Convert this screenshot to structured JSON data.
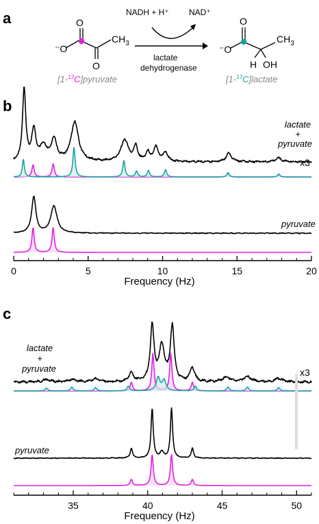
{
  "colors": {
    "black": "#000000",
    "pyruvate": "#e020e0",
    "lactate": "#1aa3a3",
    "pyruvate_fill": "#f6d4f6",
    "lactate_fill": "#cdeaea",
    "artifact": "#c8c8c8"
  },
  "scheme": {
    "panel": "a",
    "reagents": "NADH + H⁺",
    "product_cofactor": "NAD⁺",
    "enzyme_line1": "lactate",
    "enzyme_line2": "dehydrogenase",
    "pyruvate_name": "[1-13C]pyruvate",
    "lactate_name": "[1-13C]lactate",
    "pyruvate_atoms": {
      "o_top": "O",
      "o_minus": "⁻O",
      "o_bottom": "O",
      "ch3": "CH",
      "ch3_sub": "3"
    },
    "lactate_atoms": {
      "o_top": "O",
      "o_minus": "⁻O",
      "h": "H",
      "oh": "OH",
      "ch3": "CH",
      "ch3_sub": "3"
    }
  },
  "chart_data": [
    {
      "panel": "b",
      "type": "line",
      "xlabel": "Frequency (Hz)",
      "xlim": [
        0,
        20
      ],
      "xticks": [
        0,
        5,
        10,
        15,
        20
      ],
      "labels": {
        "mixture_line1": "lactate",
        "mixture_line2": "+",
        "mixture_line3": "pyruvate",
        "scale": "x3",
        "pure": "pyruvate"
      },
      "series": [
        {
          "name": "lactate + pyruvate",
          "role": "experimental",
          "color": "#000000",
          "baseline": 0.0,
          "peaks": [
            [
              0.7,
              1.0,
              0.13
            ],
            [
              1.35,
              0.42,
              0.18
            ],
            [
              2.0,
              0.2,
              0.25
            ],
            [
              2.7,
              0.3,
              0.22
            ],
            [
              4.1,
              0.55,
              0.3
            ],
            [
              7.45,
              0.3,
              0.3
            ],
            [
              8.2,
              0.2,
              0.15
            ],
            [
              9.0,
              0.12,
              0.15
            ],
            [
              9.55,
              0.2,
              0.2
            ],
            [
              10.2,
              0.12,
              0.18
            ],
            [
              14.45,
              0.12,
              0.22
            ],
            [
              17.8,
              0.05,
              0.25
            ]
          ]
        },
        {
          "name": "pyruvate fit (mixture)",
          "role": "fit",
          "color": "#e020e0",
          "fill": true,
          "peaks": [
            [
              1.3,
              0.55,
              0.09
            ],
            [
              2.65,
              0.6,
              0.09
            ],
            [
              14.4,
              0.15,
              0.09
            ],
            [
              17.8,
              0.1,
              0.09
            ]
          ]
        },
        {
          "name": "lactate fit (mixture)",
          "role": "fit",
          "color": "#1aa3a3",
          "fill": true,
          "peaks": [
            [
              0.65,
              0.6,
              0.08
            ],
            [
              4.05,
              1.0,
              0.09
            ],
            [
              7.4,
              0.55,
              0.09
            ],
            [
              8.25,
              0.2,
              0.09
            ],
            [
              9.05,
              0.22,
              0.09
            ],
            [
              10.2,
              0.25,
              0.09
            ],
            [
              14.4,
              0.15,
              0.09
            ],
            [
              17.8,
              0.1,
              0.09
            ]
          ]
        },
        {
          "name": "pyruvate",
          "role": "experimental",
          "color": "#000000",
          "baseline": 0.0,
          "peaks": [
            [
              1.35,
              1.0,
              0.17
            ],
            [
              2.7,
              0.75,
              0.25
            ]
          ]
        },
        {
          "name": "pyruvate fit",
          "role": "fit",
          "color": "#e020e0",
          "fill": true,
          "peaks": [
            [
              1.3,
              1.0,
              0.09
            ],
            [
              2.65,
              1.0,
              0.09
            ]
          ]
        }
      ]
    },
    {
      "panel": "c",
      "type": "line",
      "xlabel": "Frequency (Hz)",
      "xlim": [
        31,
        51
      ],
      "xticks": [
        35,
        40,
        45,
        50
      ],
      "labels": {
        "mixture_line1": "lactate",
        "mixture_line2": "+",
        "mixture_line3": "pyruvate",
        "scale": "x3",
        "pure": "pyruvate"
      },
      "series": [
        {
          "name": "lactate + pyruvate",
          "role": "experimental",
          "color": "#000000",
          "baseline": 0.0,
          "peaks": [
            [
              33.2,
              0.04,
              0.3
            ],
            [
              34.9,
              0.04,
              0.3
            ],
            [
              36.5,
              0.05,
              0.3
            ],
            [
              38.9,
              0.15,
              0.18
            ],
            [
              40.3,
              0.95,
              0.15
            ],
            [
              40.95,
              0.6,
              0.22
            ],
            [
              41.65,
              0.95,
              0.15
            ],
            [
              43.0,
              0.24,
              0.18
            ],
            [
              45.3,
              0.08,
              0.3
            ],
            [
              46.7,
              0.09,
              0.3
            ],
            [
              48.8,
              0.06,
              0.3
            ]
          ]
        },
        {
          "name": "pyruvate fit (mixture)",
          "role": "fit",
          "color": "#e020e0",
          "fill": true,
          "peaks": [
            [
              38.9,
              0.18,
              0.09
            ],
            [
              40.35,
              0.78,
              0.09
            ],
            [
              41.55,
              0.78,
              0.09
            ],
            [
              43.0,
              0.18,
              0.09
            ]
          ]
        },
        {
          "name": "lactate fit (mixture)",
          "role": "fit",
          "color": "#1aa3a3",
          "fill": true,
          "peaks": [
            [
              33.2,
              0.06,
              0.1
            ],
            [
              34.9,
              0.08,
              0.1
            ],
            [
              36.5,
              0.07,
              0.1
            ],
            [
              38.7,
              0.1,
              0.1
            ],
            [
              40.7,
              0.28,
              0.15
            ],
            [
              41.1,
              0.22,
              0.15
            ],
            [
              43.2,
              0.1,
              0.1
            ],
            [
              45.4,
              0.08,
              0.1
            ],
            [
              46.7,
              0.08,
              0.1
            ],
            [
              48.8,
              0.07,
              0.1
            ]
          ]
        },
        {
          "name": "pyruvate",
          "role": "experimental",
          "color": "#000000",
          "baseline": 0.0,
          "peaks": [
            [
              38.9,
              0.2,
              0.09
            ],
            [
              40.3,
              1.0,
              0.09
            ],
            [
              40.95,
              0.12,
              0.15
            ],
            [
              41.6,
              1.0,
              0.09
            ],
            [
              43.0,
              0.2,
              0.09
            ]
          ]
        },
        {
          "name": "pyruvate fit",
          "role": "fit",
          "color": "#e020e0",
          "fill": true,
          "peaks": [
            [
              38.9,
              0.2,
              0.09
            ],
            [
              40.3,
              1.0,
              0.09
            ],
            [
              41.6,
              1.0,
              0.09
            ],
            [
              43.0,
              0.2,
              0.09
            ]
          ]
        }
      ]
    }
  ]
}
